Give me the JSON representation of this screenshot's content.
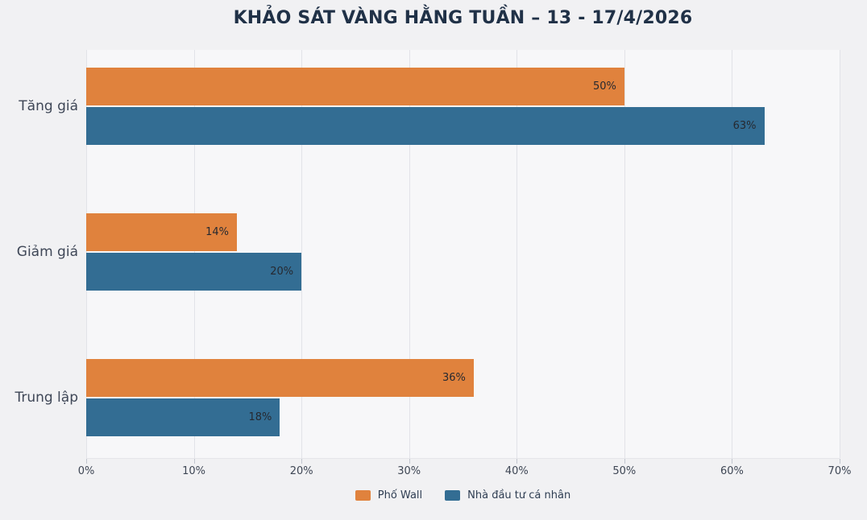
{
  "title": "KHẢO SÁT VÀNG HẰNG TUẦN – 13 - 17/4/2026",
  "colors": {
    "wall_street_orange": "#e0823d",
    "individual_blue": "#336d93",
    "outer_background": "#f1f1f3",
    "plot_background": "#f7f7f9",
    "gridline": "#e2e3e8",
    "title_text": "#203147",
    "category_text": "#3f4757",
    "tick_text": "#3e4654",
    "bar_label_text": "#262930",
    "legend_text": "#2e3d52"
  },
  "chart_data": {
    "type": "bar",
    "orientation": "horizontal",
    "title": "KHẢO SÁT VÀNG HẰNG TUẦN – 13 - 17/4/2026",
    "categories": [
      "Tăng giá",
      "Giảm giá",
      "Trung lập"
    ],
    "series": [
      {
        "name": "Phố Wall",
        "color": "#e0823d",
        "values": [
          50,
          14,
          36
        ]
      },
      {
        "name": "Nhà đầu tư cá nhân",
        "color": "#336d93",
        "values": [
          63,
          20,
          18
        ]
      }
    ],
    "data_labels": [
      [
        "50%",
        "14%",
        "36%"
      ],
      [
        "63%",
        "20%",
        "18%"
      ]
    ],
    "value_suffix": "%",
    "xlim": [
      0,
      70
    ],
    "x_ticks": [
      "0%",
      "10%",
      "20%",
      "30%",
      "40%",
      "50%",
      "60%",
      "70%"
    ],
    "xlabel": "",
    "ylabel": "",
    "grid": true,
    "legend_position": "bottom-center"
  }
}
